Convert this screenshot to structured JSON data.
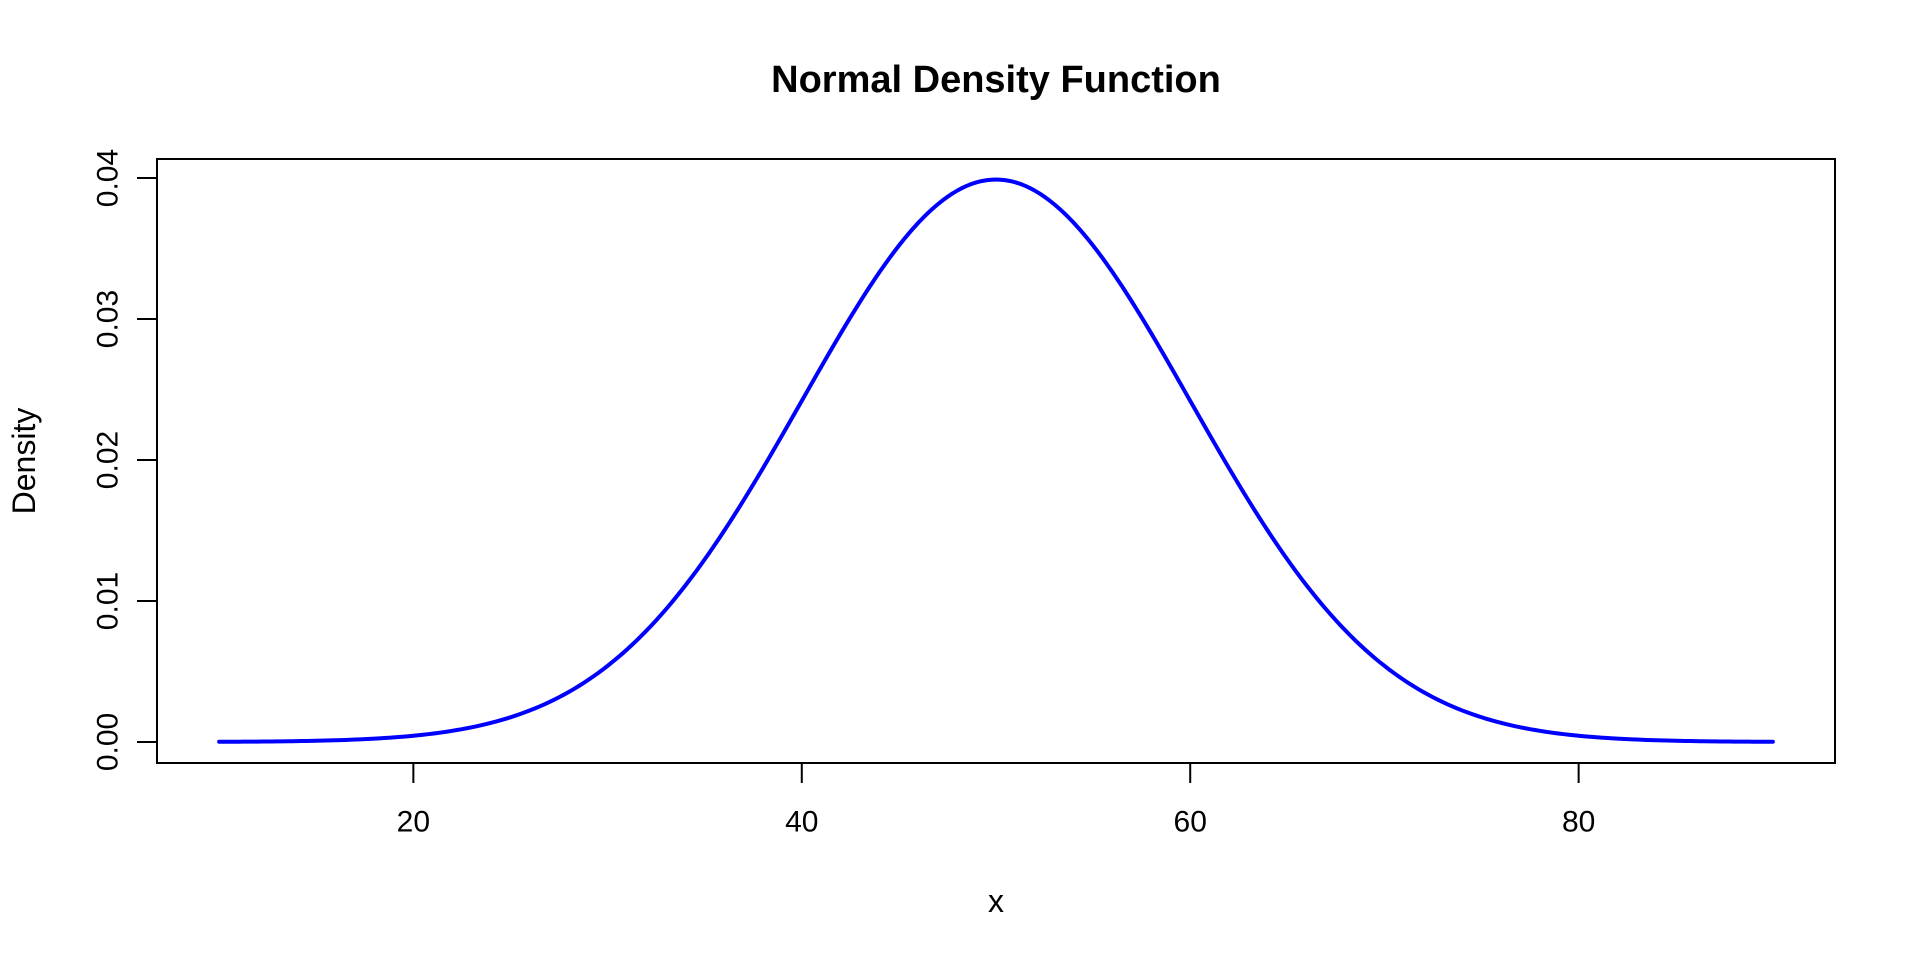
{
  "title": "Normal Density Function",
  "x_axis": {
    "label": "x",
    "tick_labels": [
      "20",
      "40",
      "60",
      "80"
    ],
    "tick_values": [
      20,
      40,
      60,
      80
    ],
    "range": [
      6.8,
      93.2
    ]
  },
  "y_axis": {
    "label": "Density",
    "tick_labels": [
      "0.00",
      "0.01",
      "0.02",
      "0.03",
      "0.04"
    ],
    "tick_values": [
      0,
      0.01,
      0.02,
      0.03,
      0.04
    ],
    "range": [
      -0.00149,
      0.04135
    ]
  },
  "chart_data": {
    "type": "line",
    "title": "Normal Density Function",
    "xlabel": "x",
    "ylabel": "Density",
    "xlim": [
      10,
      90
    ],
    "ylim": [
      0,
      0.0399
    ],
    "grid": false,
    "legend": "none",
    "frame": "full-box",
    "series": [
      {
        "name": "normal-density-curve",
        "color": "#0000ff",
        "distribution": {
          "shape": "normal",
          "mean": 50,
          "sd": 10,
          "peak_y": 0.0399
        },
        "x": [
          10,
          15,
          20,
          25,
          30,
          35,
          40,
          45,
          50,
          55,
          60,
          65,
          70,
          75,
          80,
          85,
          90
        ],
        "y": [
          1.34e-05,
          8.73e-05,
          0.0004432,
          0.0017528,
          0.0053991,
          0.0129518,
          0.0241971,
          0.0352065,
          0.0398942,
          0.0352065,
          0.0241971,
          0.0129518,
          0.0053991,
          0.0017528,
          0.0004432,
          8.73e-05,
          1.34e-05
        ]
      }
    ]
  },
  "colors": {
    "line": "#0000ff",
    "axis": "#000000",
    "text": "#000000",
    "background": "#ffffff"
  }
}
